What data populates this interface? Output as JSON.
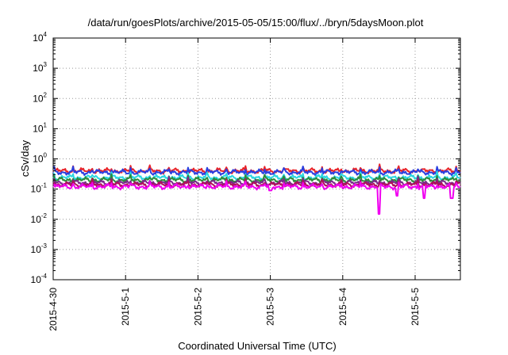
{
  "chart_data": {
    "type": "line",
    "title": "/data/run/goesPlots/archive/2015-05-05/15:00/flux/../bryn/5daysMoon.plot",
    "xlabel": "Coordinated Universal Time (UTC)",
    "ylabel": "cSv/day",
    "yscale": "log",
    "ylim": [
      0.0001,
      10000
    ],
    "y_ticks": [
      {
        "base": "10",
        "exp": "-4"
      },
      {
        "base": "10",
        "exp": "-3"
      },
      {
        "base": "10",
        "exp": "-2"
      },
      {
        "base": "10",
        "exp": "-1"
      },
      {
        "base": "10",
        "exp": "0"
      },
      {
        "base": "10",
        "exp": "1"
      },
      {
        "base": "10",
        "exp": "2"
      },
      {
        "base": "10",
        "exp": "3"
      },
      {
        "base": "10",
        "exp": "4"
      }
    ],
    "x_ticks": [
      "2015-4-30",
      "2015-5-1",
      "2015-5-2",
      "2015-5-3",
      "2015-5-4",
      "2015-5-5"
    ],
    "xlim": [
      "2015-04-30 00:00",
      "2015-05-05 15:00"
    ],
    "grid": true,
    "legend": "none",
    "series": [
      {
        "color": "#e8242a",
        "baseline": 0.4,
        "x": [
          "2015-04-30 00:00",
          "2015-05-01 00:00",
          "2015-05-02 00:00",
          "2015-05-03 00:00",
          "2015-05-04 00:00",
          "2015-05-05 00:00",
          "2015-05-05 15:00"
        ],
        "values": [
          0.4,
          0.41,
          0.4,
          0.38,
          0.4,
          0.39,
          0.4
        ]
      },
      {
        "color": "#2a3fe0",
        "baseline": 0.36,
        "x": [
          "2015-04-30 00:00",
          "2015-05-01 00:00",
          "2015-05-02 00:00",
          "2015-05-03 00:00",
          "2015-05-04 00:00",
          "2015-05-05 00:00",
          "2015-05-05 15:00"
        ],
        "values": [
          0.36,
          0.37,
          0.36,
          0.34,
          0.36,
          0.35,
          0.36
        ]
      },
      {
        "color": "#2ad6e0",
        "baseline": 0.24,
        "x": [
          "2015-04-30 00:00",
          "2015-05-01 00:00",
          "2015-05-02 00:00",
          "2015-05-03 00:00",
          "2015-05-04 00:00",
          "2015-05-05 00:00",
          "2015-05-05 15:00"
        ],
        "values": [
          0.24,
          0.25,
          0.24,
          0.23,
          0.24,
          0.24,
          0.24
        ]
      },
      {
        "color": "#2e8b3a",
        "baseline": 0.2,
        "x": [
          "2015-04-30 00:00",
          "2015-05-01 00:00",
          "2015-05-02 00:00",
          "2015-05-03 00:00",
          "2015-05-04 00:00",
          "2015-05-05 00:00",
          "2015-05-05 15:00"
        ],
        "values": [
          0.2,
          0.2,
          0.2,
          0.19,
          0.2,
          0.2,
          0.2
        ]
      },
      {
        "color": "#7a2a8a",
        "baseline": 0.16,
        "x": [
          "2015-04-30 00:00",
          "2015-05-01 00:00",
          "2015-05-02 00:00",
          "2015-05-03 00:00",
          "2015-05-04 00:00",
          "2015-05-05 00:00",
          "2015-05-05 15:00"
        ],
        "values": [
          0.16,
          0.16,
          0.16,
          0.15,
          0.16,
          0.16,
          0.16
        ]
      },
      {
        "color": "#b0105a",
        "baseline": 0.14,
        "x": [
          "2015-04-30 00:00",
          "2015-05-01 00:00",
          "2015-05-02 00:00",
          "2015-05-03 00:00",
          "2015-05-04 00:00",
          "2015-05-05 00:00",
          "2015-05-05 15:00"
        ],
        "values": [
          0.14,
          0.14,
          0.14,
          0.13,
          0.14,
          0.14,
          0.14
        ]
      },
      {
        "color": "#f000f0",
        "baseline": 0.12,
        "x": [
          "2015-04-30 00:00",
          "2015-05-01 00:00",
          "2015-05-02 00:00",
          "2015-05-03 00:00",
          "2015-05-04 12:00",
          "2015-05-04 18:00",
          "2015-05-05 03:00",
          "2015-05-05 12:00",
          "2015-05-05 15:00"
        ],
        "values": [
          0.12,
          0.12,
          0.12,
          0.09,
          0.015,
          0.06,
          0.05,
          0.05,
          0.12
        ]
      }
    ]
  }
}
